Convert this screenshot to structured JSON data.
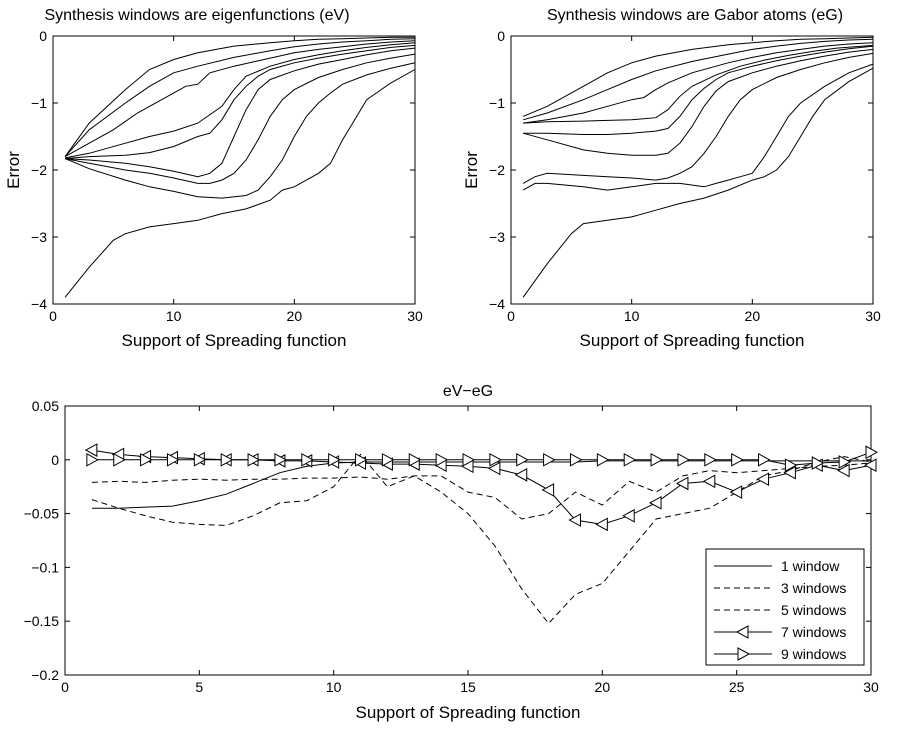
{
  "chart_data": [
    {
      "type": "line",
      "title": "Synthesis windows are eigenfunctions (eV)",
      "xlabel": "Support of Spreading function",
      "ylabel": "Error",
      "xlim": [
        0,
        30
      ],
      "ylim": [
        -4,
        0
      ],
      "xticks": [
        "0",
        "10",
        "20",
        "30"
      ],
      "yticks": [
        "0",
        "−1",
        "−2",
        "−3",
        "−4"
      ],
      "grid": false,
      "series": [
        {
          "x": [
            1,
            3,
            6,
            8,
            10,
            12,
            15,
            18,
            20,
            22,
            24,
            26,
            28,
            30
          ],
          "y": [
            -1.8,
            -1.3,
            -0.8,
            -0.5,
            -0.35,
            -0.25,
            -0.15,
            -0.1,
            -0.07,
            -0.05,
            -0.04,
            -0.03,
            -0.02,
            -0.02
          ]
        },
        {
          "x": [
            1,
            3,
            6,
            8,
            10,
            12,
            15,
            18,
            20,
            22,
            24,
            26,
            28,
            30
          ],
          "y": [
            -1.8,
            -1.4,
            -1.0,
            -0.75,
            -0.55,
            -0.45,
            -0.32,
            -0.22,
            -0.16,
            -0.12,
            -0.09,
            -0.07,
            -0.05,
            -0.04
          ]
        },
        {
          "x": [
            1,
            3,
            5,
            7,
            9,
            11,
            12,
            13,
            15,
            18,
            20,
            22,
            24,
            26,
            28,
            30
          ],
          "y": [
            -1.8,
            -1.6,
            -1.4,
            -1.15,
            -0.95,
            -0.75,
            -0.72,
            -0.55,
            -0.45,
            -0.33,
            -0.25,
            -0.2,
            -0.16,
            -0.12,
            -0.09,
            -0.07
          ]
        },
        {
          "x": [
            1,
            3,
            6,
            8,
            10,
            12,
            14,
            15,
            16,
            18,
            20,
            22,
            24,
            26,
            28,
            30
          ],
          "y": [
            -1.82,
            -1.75,
            -1.6,
            -1.5,
            -1.42,
            -1.3,
            -1.05,
            -0.8,
            -0.6,
            -0.45,
            -0.35,
            -0.28,
            -0.22,
            -0.17,
            -0.13,
            -0.1
          ]
        },
        {
          "x": [
            1,
            3,
            6,
            8,
            10,
            12,
            13,
            14,
            15,
            16,
            17,
            18,
            20,
            22,
            24,
            26,
            28,
            30
          ],
          "y": [
            -1.83,
            -1.8,
            -1.78,
            -1.74,
            -1.65,
            -1.5,
            -1.45,
            -1.25,
            -0.95,
            -0.75,
            -0.6,
            -0.5,
            -0.4,
            -0.33,
            -0.27,
            -0.22,
            -0.17,
            -0.14
          ]
        },
        {
          "x": [
            1,
            3,
            6,
            8,
            10,
            12,
            13,
            14,
            15,
            16,
            17,
            18,
            20,
            22,
            24,
            26,
            28,
            30
          ],
          "y": [
            -1.83,
            -1.85,
            -1.9,
            -1.95,
            -2.02,
            -2.1,
            -2.05,
            -1.9,
            -1.5,
            -1.1,
            -0.8,
            -0.65,
            -0.52,
            -0.42,
            -0.35,
            -0.28,
            -0.22,
            -0.18
          ]
        },
        {
          "x": [
            1,
            3,
            6,
            8,
            10,
            12,
            13,
            14,
            15,
            16,
            17,
            18,
            19,
            20,
            22,
            24,
            26,
            28,
            30
          ],
          "y": [
            -1.83,
            -1.9,
            -2.0,
            -2.05,
            -2.12,
            -2.2,
            -2.2,
            -2.15,
            -2.05,
            -1.85,
            -1.55,
            -1.2,
            -0.95,
            -0.8,
            -0.62,
            -0.5,
            -0.4,
            -0.33,
            -0.27
          ]
        },
        {
          "x": [
            1,
            3,
            6,
            8,
            10,
            12,
            14,
            16,
            17,
            18,
            19,
            20,
            21,
            22,
            23,
            24,
            26,
            28,
            30
          ],
          "y": [
            -1.83,
            -1.98,
            -2.15,
            -2.25,
            -2.32,
            -2.4,
            -2.42,
            -2.38,
            -2.3,
            -2.1,
            -1.85,
            -1.5,
            -1.2,
            -1.0,
            -0.85,
            -0.72,
            -0.58,
            -0.48,
            -0.4
          ]
        },
        {
          "x": [
            1,
            3,
            5,
            6,
            8,
            10,
            12,
            14,
            16,
            18,
            19,
            20,
            21,
            22,
            23,
            24,
            25,
            26,
            28,
            30
          ],
          "y": [
            -3.9,
            -3.45,
            -3.05,
            -2.95,
            -2.85,
            -2.8,
            -2.75,
            -2.65,
            -2.58,
            -2.45,
            -2.3,
            -2.25,
            -2.15,
            -2.05,
            -1.9,
            -1.55,
            -1.25,
            -0.95,
            -0.7,
            -0.5
          ]
        }
      ]
    },
    {
      "type": "line",
      "title": "Synthesis windows are Gabor atoms (eG)",
      "xlabel": "Support of Spreading function",
      "ylabel": "Error",
      "xlim": [
        0,
        30
      ],
      "ylim": [
        -4,
        0
      ],
      "xticks": [
        "0",
        "10",
        "20",
        "30"
      ],
      "yticks": [
        "0",
        "−1",
        "−2",
        "−3",
        "−4"
      ],
      "grid": false,
      "series": [
        {
          "x": [
            1,
            3,
            6,
            8,
            10,
            12,
            15,
            18,
            20,
            22,
            24,
            26,
            28,
            30
          ],
          "y": [
            -1.2,
            -1.05,
            -0.75,
            -0.55,
            -0.4,
            -0.3,
            -0.2,
            -0.13,
            -0.1,
            -0.07,
            -0.05,
            -0.04,
            -0.03,
            -0.02
          ]
        },
        {
          "x": [
            1,
            3,
            6,
            8,
            10,
            12,
            15,
            18,
            20,
            22,
            24,
            26,
            28,
            30
          ],
          "y": [
            -1.25,
            -1.15,
            -0.95,
            -0.8,
            -0.65,
            -0.52,
            -0.38,
            -0.27,
            -0.2,
            -0.15,
            -0.11,
            -0.08,
            -0.06,
            -0.05
          ]
        },
        {
          "x": [
            1,
            3,
            6,
            8,
            10,
            11,
            12,
            13,
            15,
            18,
            20,
            22,
            24,
            26,
            28,
            30
          ],
          "y": [
            -1.3,
            -1.25,
            -1.15,
            -1.05,
            -0.95,
            -0.92,
            -0.8,
            -0.7,
            -0.55,
            -0.4,
            -0.32,
            -0.25,
            -0.2,
            -0.15,
            -0.12,
            -0.1
          ]
        },
        {
          "x": [
            1,
            3,
            6,
            8,
            10,
            12,
            13,
            14,
            15,
            17,
            19,
            21,
            23,
            25,
            27,
            30
          ],
          "y": [
            -1.3,
            -1.28,
            -1.27,
            -1.26,
            -1.25,
            -1.22,
            -1.1,
            -0.9,
            -0.75,
            -0.58,
            -0.45,
            -0.36,
            -0.29,
            -0.23,
            -0.18,
            -0.14
          ]
        },
        {
          "x": [
            1,
            3,
            6,
            8,
            10,
            12,
            13,
            14,
            15,
            16,
            17,
            18,
            20,
            22,
            24,
            26,
            28,
            30
          ],
          "y": [
            -1.45,
            -1.45,
            -1.47,
            -1.47,
            -1.45,
            -1.42,
            -1.38,
            -1.2,
            -0.95,
            -0.78,
            -0.65,
            -0.55,
            -0.45,
            -0.37,
            -0.3,
            -0.24,
            -0.19,
            -0.15
          ]
        },
        {
          "x": [
            1,
            3,
            6,
            8,
            10,
            12,
            13,
            14,
            15,
            16,
            17,
            18,
            20,
            22,
            24,
            26,
            28,
            30
          ],
          "y": [
            -1.45,
            -1.55,
            -1.7,
            -1.75,
            -1.78,
            -1.78,
            -1.75,
            -1.6,
            -1.35,
            -1.05,
            -0.82,
            -0.68,
            -0.55,
            -0.45,
            -0.37,
            -0.3,
            -0.24,
            -0.2
          ]
        },
        {
          "x": [
            1,
            2,
            3,
            6,
            8,
            10,
            12,
            13,
            14,
            15,
            16,
            17,
            18,
            19,
            20,
            22,
            24,
            26,
            28,
            30
          ],
          "y": [
            -2.2,
            -2.1,
            -2.05,
            -2.08,
            -2.1,
            -2.12,
            -2.15,
            -2.12,
            -2.05,
            -1.95,
            -1.75,
            -1.5,
            -1.2,
            -0.95,
            -0.8,
            -0.62,
            -0.5,
            -0.4,
            -0.32,
            -0.26
          ]
        },
        {
          "x": [
            1,
            2,
            3,
            6,
            8,
            10,
            12,
            14,
            16,
            17,
            18,
            19,
            20,
            21,
            22,
            23,
            24,
            26,
            28,
            30
          ],
          "y": [
            -2.3,
            -2.2,
            -2.2,
            -2.25,
            -2.3,
            -2.25,
            -2.2,
            -2.2,
            -2.25,
            -2.2,
            -2.15,
            -2.1,
            -2.05,
            -1.8,
            -1.5,
            -1.2,
            -1.0,
            -0.75,
            -0.55,
            -0.42
          ]
        },
        {
          "x": [
            1,
            3,
            5,
            6,
            8,
            10,
            12,
            14,
            16,
            18,
            20,
            21,
            22,
            23,
            24,
            25,
            26,
            28,
            30
          ],
          "y": [
            -3.9,
            -3.4,
            -2.95,
            -2.8,
            -2.75,
            -2.7,
            -2.6,
            -2.5,
            -2.42,
            -2.3,
            -2.15,
            -2.1,
            -2.0,
            -1.8,
            -1.5,
            -1.2,
            -0.95,
            -0.68,
            -0.48
          ]
        }
      ]
    },
    {
      "type": "line",
      "title": "eV−eG",
      "xlabel": "Support of Spreading function",
      "ylabel": "",
      "xlim": [
        0,
        30
      ],
      "ylim": [
        -0.2,
        0.05
      ],
      "xticks": [
        "0",
        "5",
        "10",
        "15",
        "20",
        "25",
        "30"
      ],
      "yticks": [
        "0.05",
        "0",
        "−0.05",
        "−0.1",
        "−0.15",
        "−0.2"
      ],
      "grid": false,
      "legend": "bottom-right",
      "series": [
        {
          "name": "1 window",
          "style": "solid",
          "marker": "none",
          "x": [
            1,
            2,
            3,
            4,
            5,
            6,
            7,
            8,
            9,
            10,
            11,
            12,
            13,
            14,
            15,
            16,
            17,
            18,
            19,
            20,
            21,
            22,
            23,
            24,
            25,
            26,
            27,
            28,
            29,
            30
          ],
          "y": [
            -0.045,
            -0.045,
            -0.044,
            -0.043,
            -0.038,
            -0.032,
            -0.022,
            -0.012,
            -0.006,
            -0.003,
            -0.002,
            -0.002,
            -0.002,
            -0.002,
            -0.002,
            -0.002,
            -0.002,
            -0.002,
            -0.002,
            -0.001,
            -0.001,
            -0.001,
            -0.001,
            -0.001,
            -0.001,
            -0.001,
            -0.001,
            -0.001,
            -0.001,
            -0.001
          ]
        },
        {
          "name": "3 windows",
          "style": "dashed",
          "marker": "none",
          "x": [
            1,
            2,
            3,
            4,
            5,
            6,
            7,
            8,
            9,
            10,
            11,
            12,
            13,
            14,
            15,
            16,
            17,
            18,
            19,
            20,
            21,
            22,
            23,
            24,
            25,
            26,
            27,
            28,
            29,
            30
          ],
          "y": [
            -0.021,
            -0.02,
            -0.021,
            -0.019,
            -0.018,
            -0.019,
            -0.018,
            -0.018,
            -0.017,
            -0.017,
            -0.016,
            -0.018,
            -0.015,
            -0.015,
            -0.03,
            -0.035,
            -0.055,
            -0.05,
            -0.03,
            -0.042,
            -0.02,
            -0.03,
            -0.015,
            -0.01,
            -0.012,
            -0.01,
            -0.008,
            -0.006,
            -0.005,
            -0.003
          ]
        },
        {
          "name": "5 windows",
          "style": "dashed",
          "marker": "none",
          "x": [
            1,
            2,
            3,
            4,
            5,
            6,
            7,
            8,
            9,
            10,
            11,
            12,
            13,
            14,
            15,
            16,
            17,
            18,
            19,
            20,
            21,
            22,
            23,
            24,
            25,
            26,
            27,
            28,
            29,
            30
          ],
          "y": [
            -0.037,
            -0.045,
            -0.052,
            -0.058,
            -0.06,
            -0.061,
            -0.052,
            -0.04,
            -0.038,
            -0.025,
            0.005,
            -0.025,
            -0.015,
            -0.03,
            -0.05,
            -0.08,
            -0.12,
            -0.152,
            -0.125,
            -0.115,
            -0.085,
            -0.055,
            -0.05,
            -0.045,
            -0.03,
            -0.015,
            -0.01,
            -0.002,
            0.003,
            -0.002
          ]
        },
        {
          "name": "7 windows",
          "style": "solid",
          "marker": "triangle-left",
          "x": [
            1,
            2,
            3,
            4,
            5,
            6,
            7,
            8,
            9,
            10,
            11,
            12,
            13,
            14,
            15,
            16,
            17,
            18,
            19,
            20,
            21,
            22,
            23,
            24,
            25,
            26,
            27,
            28,
            29,
            30
          ],
          "y": [
            0.009,
            0.005,
            0.003,
            0.002,
            0.001,
            0.0,
            0.0,
            -0.001,
            -0.001,
            -0.002,
            -0.003,
            -0.004,
            -0.004,
            -0.005,
            -0.006,
            -0.008,
            -0.014,
            -0.028,
            -0.056,
            -0.06,
            -0.052,
            -0.04,
            -0.022,
            -0.02,
            -0.03,
            -0.018,
            -0.012,
            -0.005,
            -0.01,
            -0.005
          ]
        },
        {
          "name": "9 windows",
          "style": "solid",
          "marker": "triangle-right",
          "x": [
            1,
            2,
            3,
            4,
            5,
            6,
            7,
            8,
            9,
            10,
            11,
            12,
            13,
            14,
            15,
            16,
            17,
            18,
            19,
            20,
            21,
            22,
            23,
            24,
            25,
            26,
            27,
            28,
            29,
            30
          ],
          "y": [
            0.0,
            0.0,
            0.0,
            0.0,
            0.0,
            0.0,
            0.0,
            0.0,
            0.0,
            0.0,
            0.0,
            0.0,
            0.0,
            0.0,
            0.0,
            0.0,
            0.0,
            0.0,
            0.0,
            0.0,
            0.0,
            0.0,
            0.0,
            0.0,
            0.0,
            0.0,
            -0.005,
            -0.003,
            -0.002,
            0.007
          ]
        }
      ]
    }
  ]
}
